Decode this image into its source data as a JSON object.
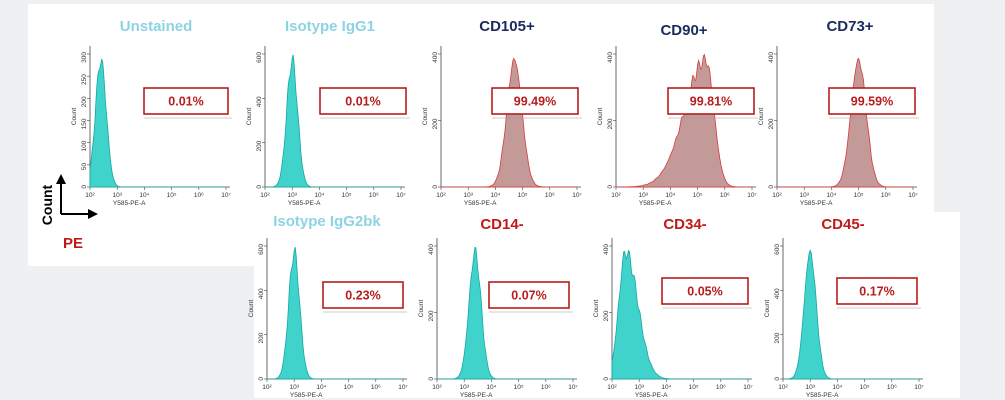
{
  "colors": {
    "neg_title": "#8dd3e3",
    "pos_title": "#1a2b5e",
    "neg_marker_title": "#c21818",
    "neg_fill": "#40d3cc",
    "neg_stroke": "#17a7a4",
    "pos_fill": "#c49a98",
    "pos_stroke": "#d63a3a",
    "box": "#b81d1d"
  },
  "legend": {
    "y_label": "Count",
    "x_label": "PE"
  },
  "chart_data": [
    {
      "id": "unstained",
      "type": "histogram",
      "title": "Unstained",
      "title_color": "neg_title",
      "peak_log": 2.4,
      "spread": 0.2,
      "shape": "normal",
      "fill": "neg",
      "percent": "0.01%",
      "ylabel": "Count",
      "xlabel": "Y585-PE-A",
      "yticks": [
        "0",
        "50",
        "100",
        "150",
        "200",
        "250",
        "300"
      ],
      "xticks": [
        "10²",
        "10³",
        "10⁴",
        "10⁵",
        "10⁶",
        "10⁷"
      ]
    },
    {
      "id": "isotype-igg1",
      "type": "histogram",
      "title": "Isotype IgG1",
      "title_color": "neg_title",
      "peak_log": 3.0,
      "spread": 0.2,
      "shape": "normal",
      "fill": "neg",
      "percent": "0.01%",
      "ylabel": "Count",
      "xlabel": "Y585-PE-A",
      "yticks": [
        "0",
        "200",
        "400",
        "600"
      ],
      "xticks": [
        "10²",
        "10³",
        "10⁴",
        "10⁵",
        "10⁶",
        "10⁷"
      ]
    },
    {
      "id": "cd105",
      "type": "histogram",
      "title": "CD105+",
      "title_color": "pos_title",
      "peak_log": 4.7,
      "spread": 0.28,
      "shape": "normal",
      "fill": "pos",
      "percent": "99.49%",
      "ylabel": "Count",
      "xlabel": "Y585-PE-A",
      "yticks": [
        "0",
        "200",
        "400"
      ],
      "xticks": [
        "10²",
        "10³",
        "10⁴",
        "10⁵",
        "10⁶",
        "10⁷"
      ]
    },
    {
      "id": "cd90",
      "type": "histogram",
      "title": "CD90+",
      "title_color": "pos_title",
      "peak_log": 5.3,
      "spread": 0.3,
      "shape": "leftskew",
      "fill": "pos",
      "percent": "99.81%",
      "ylabel": "Count",
      "xlabel": "Y585-PE-A",
      "yticks": [
        "0",
        "200",
        "400"
      ],
      "xticks": [
        "10²",
        "10³",
        "10⁴",
        "10⁵",
        "10⁶",
        "10⁷"
      ]
    },
    {
      "id": "cd73",
      "type": "histogram",
      "title": "CD73+",
      "title_color": "pos_title",
      "peak_log": 5.0,
      "spread": 0.28,
      "shape": "normal",
      "fill": "pos",
      "percent": "99.59%",
      "ylabel": "Count",
      "xlabel": "Y585-PE-A",
      "yticks": [
        "0",
        "200",
        "400"
      ],
      "xticks": [
        "10²",
        "10³",
        "10⁴",
        "10⁵",
        "10⁶",
        "10⁷"
      ]
    },
    {
      "id": "isotype-igg2bk",
      "type": "histogram",
      "title": "Isotype IgG2bk",
      "title_color": "neg_title",
      "peak_log": 3.0,
      "spread": 0.2,
      "shape": "normal",
      "fill": "neg",
      "percent": "0.23%",
      "ylabel": "Count",
      "xlabel": "Y585-PE-A",
      "yticks": [
        "0",
        "200",
        "400",
        "600"
      ],
      "xticks": [
        "10²",
        "10³",
        "10⁴",
        "10⁵",
        "10⁶",
        "10⁷"
      ]
    },
    {
      "id": "cd14",
      "type": "histogram",
      "title": "CD14-",
      "title_color": "neg_marker_title",
      "peak_log": 3.4,
      "spread": 0.22,
      "shape": "normal",
      "fill": "neg",
      "percent": "0.07%",
      "ylabel": "Count",
      "xlabel": "Y585-PE-A",
      "yticks": [
        "0",
        "200",
        "400"
      ],
      "xticks": [
        "10²",
        "10³",
        "10⁴",
        "10⁵",
        "10⁶",
        "10⁷"
      ]
    },
    {
      "id": "cd34",
      "type": "histogram",
      "title": "CD34-",
      "title_color": "neg_marker_title",
      "peak_log": 2.5,
      "spread": 0.25,
      "shape": "rightskew",
      "fill": "neg",
      "percent": "0.05%",
      "ylabel": "Count",
      "xlabel": "Y585-PE-A",
      "yticks": [
        "0",
        "200",
        "400"
      ],
      "xticks": [
        "10²",
        "10³",
        "10⁴",
        "10⁵",
        "10⁶",
        "10⁷"
      ]
    },
    {
      "id": "cd45",
      "type": "histogram",
      "title": "CD45-",
      "title_color": "neg_marker_title",
      "peak_log": 3.0,
      "spread": 0.22,
      "shape": "normal",
      "fill": "neg",
      "percent": "0.17%",
      "ylabel": "Count",
      "xlabel": "Y585-PE-A",
      "yticks": [
        "0",
        "200",
        "400",
        "600"
      ],
      "xticks": [
        "10²",
        "10³",
        "10⁴",
        "10⁵",
        "10⁶",
        "10⁷"
      ]
    }
  ]
}
